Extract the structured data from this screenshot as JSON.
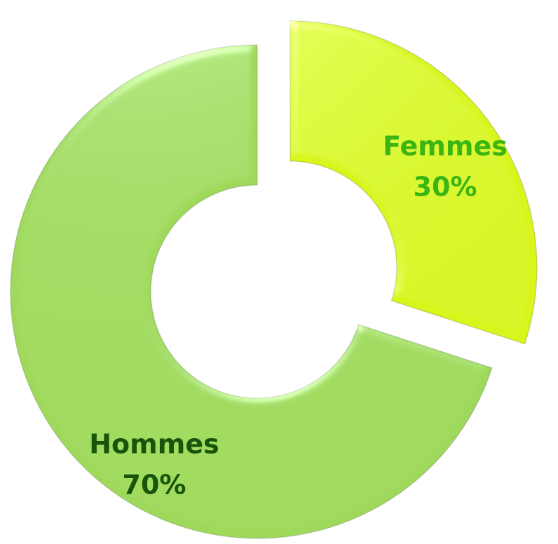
{
  "chart_data": {
    "type": "donut",
    "categories": [
      "Femmes",
      "Hommes"
    ],
    "values": [
      30,
      70
    ],
    "value_labels": [
      "30%",
      "70%"
    ],
    "colors": [
      "#d8f51b",
      "#9fd95c"
    ],
    "label_colors": [
      "#3bb512",
      "#17560a"
    ],
    "exploded": "Femmes"
  }
}
